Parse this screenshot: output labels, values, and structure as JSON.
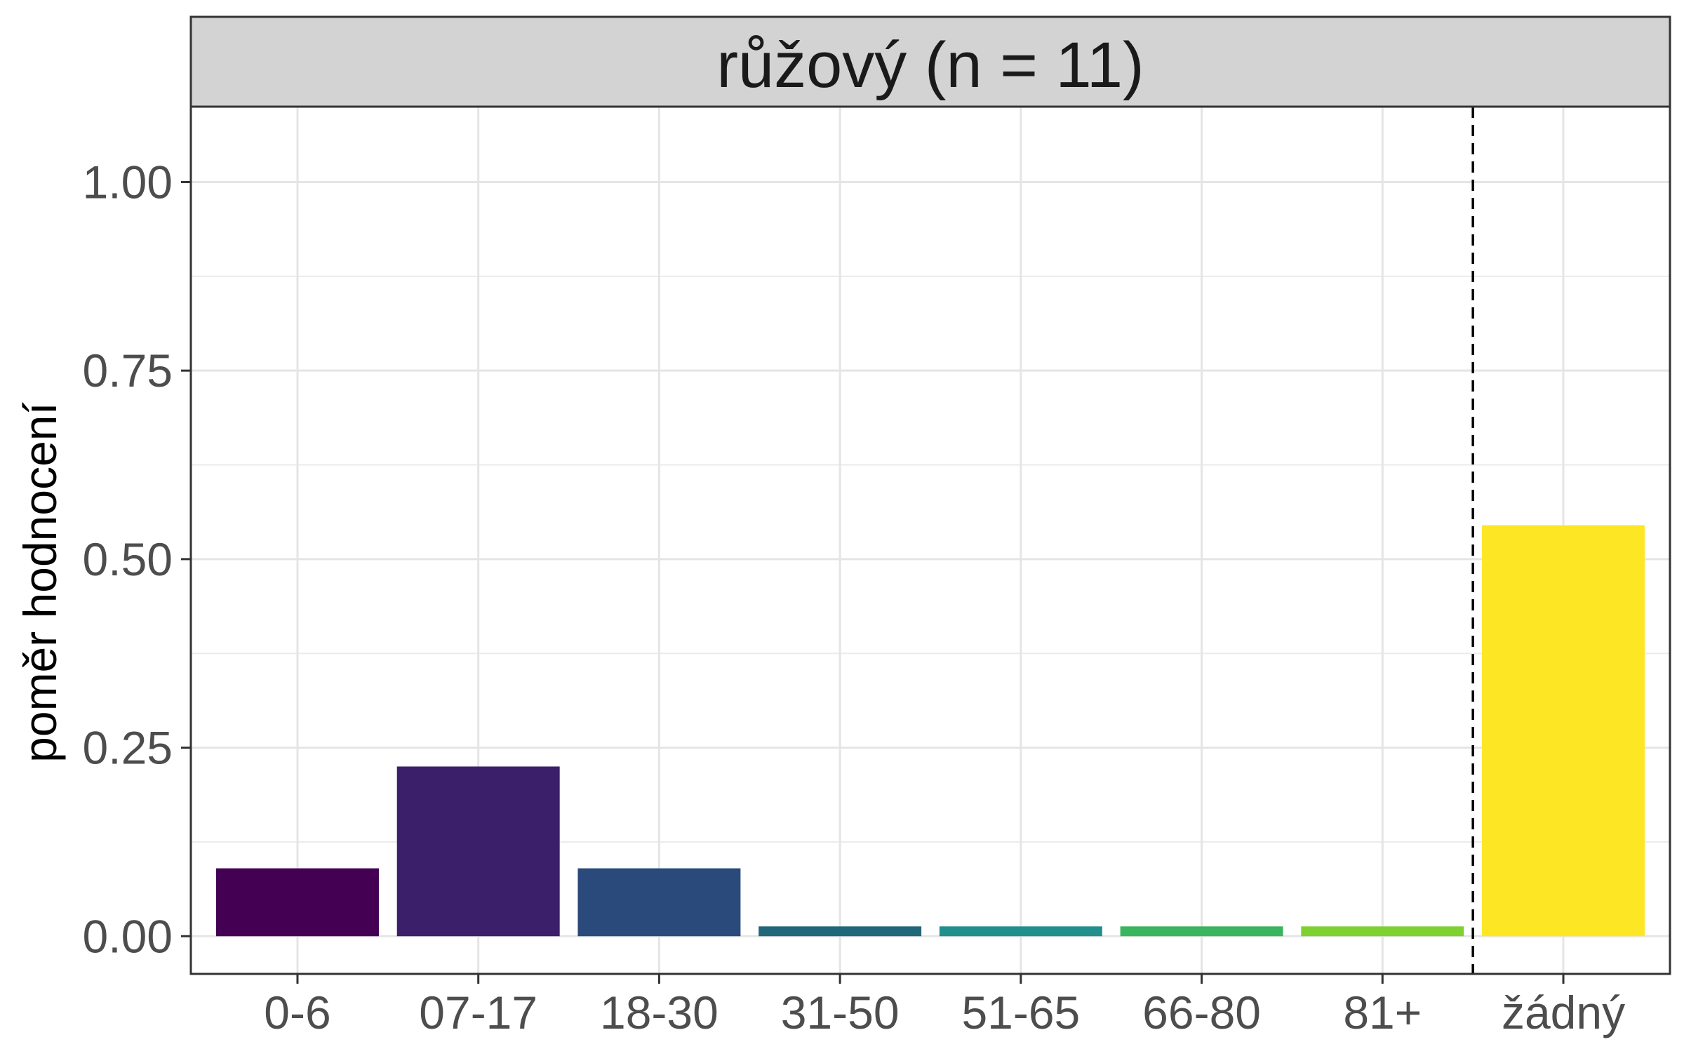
{
  "chart_data": {
    "type": "bar",
    "title": "růžový (n = 11)",
    "xlabel": "",
    "ylabel": "poměr hodnocení",
    "categories": [
      "0-6",
      "07-17",
      "18-30",
      "31-50",
      "51-65",
      "66-80",
      "81+",
      "žádný"
    ],
    "values": [
      0.09,
      0.225,
      0.09,
      0.013,
      0.013,
      0.013,
      0.013,
      0.545
    ],
    "colors": [
      "#440154",
      "#3b1f6b",
      "#2a4a7b",
      "#21677a",
      "#21908c",
      "#3bb45f",
      "#7ed130",
      "#fde725"
    ],
    "ylim": [
      -0.05,
      1.1
    ],
    "yticks": [
      "0.00",
      "0.25",
      "0.50",
      "0.75",
      "1.00"
    ],
    "reference_line": {
      "style": "dashed",
      "between": [
        "81+",
        "žádný"
      ]
    },
    "grid": true,
    "legend": "none"
  }
}
